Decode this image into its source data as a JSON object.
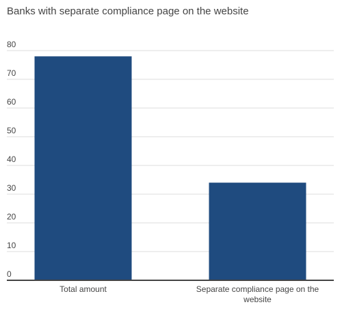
{
  "chart_data": {
    "type": "bar",
    "title": "Banks with separate compliance page on the website",
    "categories": [
      [
        "Total amount"
      ],
      [
        "Separate compliance page on the",
        "website"
      ]
    ],
    "values": [
      78,
      34
    ],
    "ylim": [
      0,
      80
    ],
    "yticks": [
      0,
      10,
      20,
      30,
      40,
      50,
      60,
      70,
      80
    ],
    "grid": true,
    "legend": "none",
    "colors": {
      "bar": "#1f4b7f",
      "grid": "#dddddd",
      "axis": "#444444",
      "text": "#444444"
    }
  }
}
